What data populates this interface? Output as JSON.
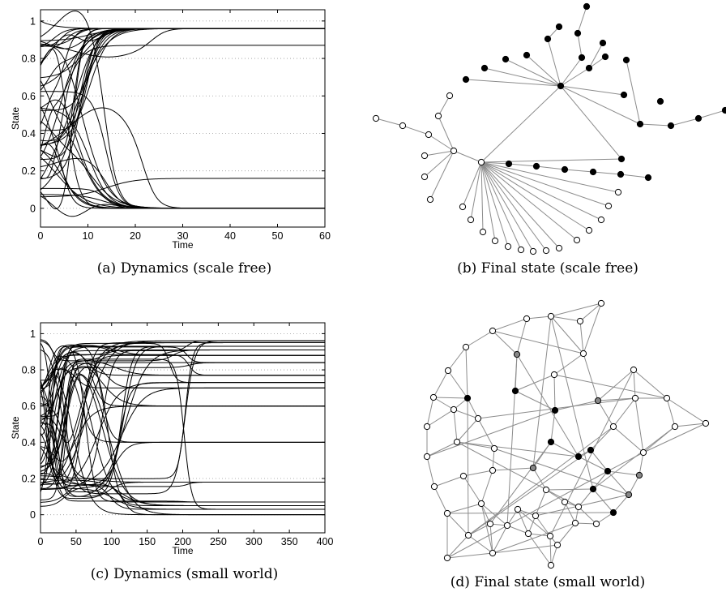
{
  "chart_data": [
    {
      "type": "line",
      "caption": "(a) Dynamics (scale free)",
      "xlabel": "Time",
      "ylabel": "State",
      "xlim": [
        0,
        60
      ],
      "ylim": [
        -0.1,
        1.06
      ],
      "xticks": [
        "0",
        "10",
        "20",
        "30",
        "40",
        "50",
        "60"
      ],
      "yticks": [
        "0",
        "0.2",
        "0.4",
        "0.6",
        "0.8",
        "1"
      ],
      "grid": "horizontal-dotted",
      "final_states": [
        0.96,
        0.87,
        0.16,
        0.0
      ],
      "series_count": 44,
      "line_color": "#000000"
    },
    {
      "type": "network",
      "caption": "(b) Final state (scale free)",
      "topology": "scale-free",
      "node_states": [
        "black",
        "white"
      ],
      "edge_color": "#8c8c8c"
    },
    {
      "type": "line",
      "caption": "(c) Dynamics (small world)",
      "xlabel": "Time",
      "ylabel": "State",
      "xlim": [
        0,
        400
      ],
      "ylim": [
        -0.1,
        1.06
      ],
      "xticks": [
        "0",
        "50",
        "100",
        "150",
        "200",
        "250",
        "300",
        "350",
        "400"
      ],
      "yticks": [
        "0",
        "0.2",
        "0.4",
        "0.6",
        "0.8",
        "1"
      ],
      "grid": "horizontal-dotted",
      "final_states": [
        0.96,
        0.95,
        0.93,
        0.91,
        0.88,
        0.84,
        0.77,
        0.73,
        0.7,
        0.6,
        0.4,
        0.18,
        0.07,
        0.05,
        0.03,
        0.0
      ],
      "series_count": 52,
      "line_color": "#000000"
    },
    {
      "type": "network",
      "caption": "(d) Final state (small world)",
      "topology": "small-world",
      "node_states": [
        "black",
        "gray",
        "white"
      ],
      "edge_color": "#8c8c8c"
    }
  ]
}
